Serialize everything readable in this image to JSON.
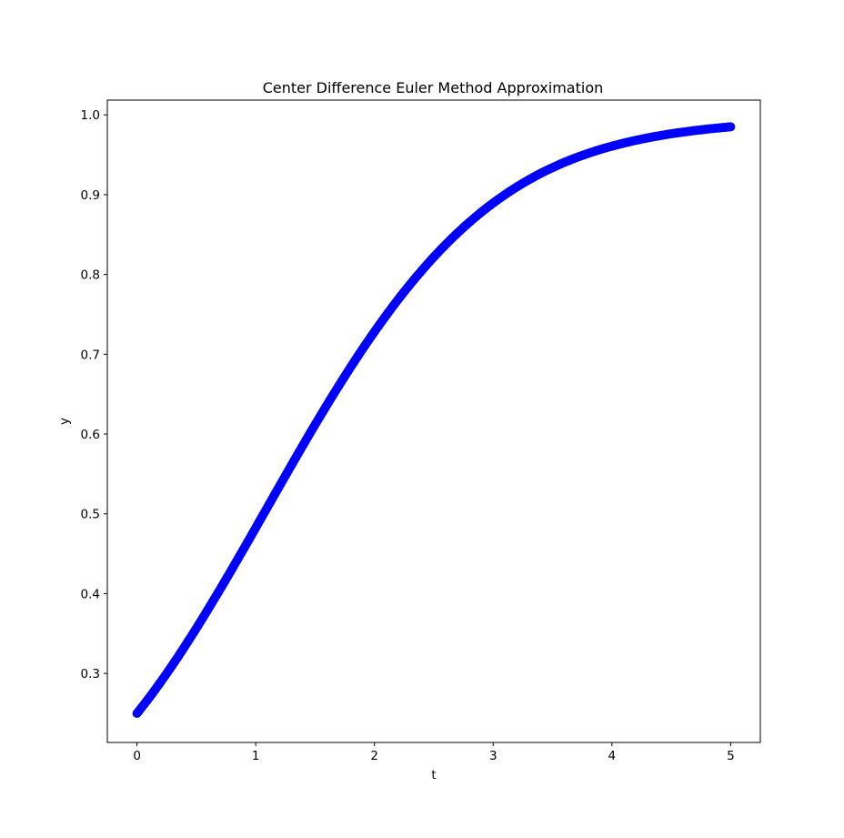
{
  "chart_data": {
    "type": "scatter",
    "title": "Center Difference Euler Method Approximation",
    "xlabel": "t",
    "ylabel": "y",
    "xlim": [
      -0.25,
      5.25
    ],
    "ylim": [
      0.2135,
      1.0185
    ],
    "xticks": [
      0,
      1,
      2,
      3,
      4,
      5
    ],
    "xtick_labels": [
      "0",
      "1",
      "2",
      "3",
      "4",
      "5"
    ],
    "yticks": [
      0.3,
      0.4,
      0.5,
      0.6,
      0.7,
      0.8,
      0.9,
      1.0
    ],
    "ytick_labels": [
      "0.3",
      "0.4",
      "0.5",
      "0.6",
      "0.7",
      "0.8",
      "0.9",
      "1.0"
    ],
    "grid": false,
    "marker_color": "#0000ff",
    "series": [
      {
        "x": [
          0,
          0.05,
          0.1,
          0.15,
          0.2,
          0.25,
          0.3,
          0.35,
          0.4,
          0.45,
          0.5,
          0.55,
          0.6,
          0.65,
          0.7,
          0.75,
          0.8,
          0.85,
          0.9,
          0.95,
          1,
          1.05,
          1.1,
          1.15,
          1.2,
          1.25,
          1.3,
          1.35,
          1.4,
          1.45,
          1.5,
          1.55,
          1.6,
          1.65,
          1.7,
          1.75,
          1.8,
          1.85,
          1.9,
          1.95,
          2,
          2.05,
          2.1,
          2.15,
          2.2,
          2.25,
          2.3,
          2.35,
          2.4,
          2.45,
          2.5,
          2.55,
          2.6,
          2.65,
          2.7,
          2.75,
          2.8,
          2.85,
          2.9,
          2.95,
          3,
          3.05,
          3.1,
          3.15,
          3.2,
          3.25,
          3.3,
          3.35,
          3.4,
          3.45,
          3.5,
          3.55,
          3.6,
          3.65,
          3.7,
          3.75,
          3.8,
          3.85,
          3.9,
          3.95,
          4,
          4.05,
          4.1,
          4.15,
          4.2,
          4.25,
          4.3,
          4.35,
          4.4,
          4.45,
          4.5,
          4.55,
          4.6,
          4.65,
          4.7,
          4.75,
          4.8,
          4.85,
          4.9,
          4.95,
          5
        ],
        "y": [
          0.25,
          0.2594,
          0.2691,
          0.2791,
          0.2894,
          0.3,
          0.3108,
          0.3219,
          0.3333,
          0.3449,
          0.3566,
          0.3686,
          0.3808,
          0.3931,
          0.4055,
          0.4181,
          0.4308,
          0.4437,
          0.4565,
          0.4695,
          0.4826,
          0.4956,
          0.5087,
          0.5218,
          0.5348,
          0.5478,
          0.5608,
          0.5737,
          0.5865,
          0.5992,
          0.6118,
          0.6242,
          0.6365,
          0.6486,
          0.6606,
          0.6724,
          0.684,
          0.6954,
          0.7066,
          0.7175,
          0.7282,
          0.7387,
          0.749,
          0.759,
          0.7688,
          0.7783,
          0.7875,
          0.7965,
          0.8052,
          0.8137,
          0.8219,
          0.8298,
          0.8375,
          0.8449,
          0.852,
          0.8589,
          0.8655,
          0.8719,
          0.878,
          0.8839,
          0.8895,
          0.8949,
          0.9001,
          0.9051,
          0.9098,
          0.9143,
          0.9186,
          0.9227,
          0.9267,
          0.9304,
          0.9339,
          0.9373,
          0.9405,
          0.9435,
          0.9464,
          0.9491,
          0.9517,
          0.9542,
          0.9565,
          0.9587,
          0.9608,
          0.9627,
          0.9646,
          0.9664,
          0.968,
          0.9696,
          0.9711,
          0.9725,
          0.9738,
          0.9751,
          0.9763,
          0.9774,
          0.9784,
          0.9794,
          0.9804,
          0.9812,
          0.9821,
          0.9829,
          0.9836,
          0.9843,
          0.985
        ]
      }
    ]
  }
}
